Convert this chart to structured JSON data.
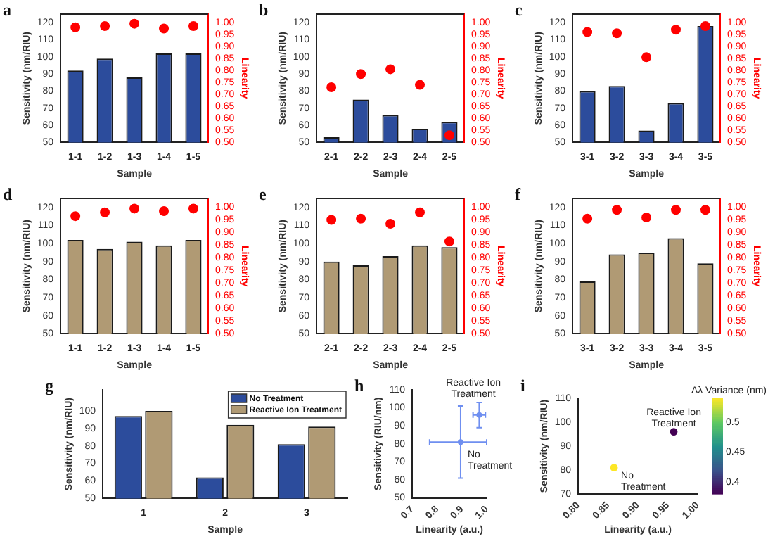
{
  "chart_data": [
    {
      "type": "bar",
      "title": "a",
      "xlabel": "Sample",
      "ylabel": "Sensitivity (nm/RIU)",
      "y2label": "Linearity",
      "categories": [
        "1-1",
        "1-2",
        "1-3",
        "1-4",
        "1-5"
      ],
      "series": [
        {
          "type": "bar",
          "color": "#2c4c9c",
          "values": [
            92,
            99,
            88,
            102,
            102
          ]
        },
        {
          "type": "scatter",
          "axis": "y2",
          "color": "#ff0000",
          "values": [
            0.98,
            0.985,
            0.995,
            0.975,
            0.985
          ]
        }
      ],
      "marker": "circle",
      "ylim": [
        50,
        125
      ],
      "yticks": [
        50,
        60,
        70,
        80,
        90,
        100,
        110,
        120
      ],
      "y2lim": [
        0.5,
        1.035
      ],
      "y2ticks": [
        {
          "value": 0.5,
          "label": "0.50"
        },
        {
          "value": 0.55,
          "label": "0.55"
        },
        {
          "value": 0.6,
          "label": "0.60"
        },
        {
          "value": 0.65,
          "label": "0.65"
        },
        {
          "value": 0.7,
          "label": "0.70"
        },
        {
          "value": 0.75,
          "label": "0.75"
        },
        {
          "value": 0.8,
          "label": "0.80"
        },
        {
          "value": 0.85,
          "label": "0.85"
        },
        {
          "value": 0.9,
          "label": "0.90"
        },
        {
          "value": 0.95,
          "label": "0.95"
        },
        {
          "value": 1,
          "label": "1.00"
        }
      ]
    },
    {
      "type": "bar",
      "title": "b",
      "xlabel": "Sample",
      "ylabel": "Sensitivity (nm/RIU)",
      "y2label": "Linearity",
      "categories": [
        "2-1",
        "2-2",
        "2-3",
        "2-4",
        "2-5"
      ],
      "series": [
        {
          "type": "bar",
          "color": "#2c4c9c",
          "values": [
            53,
            75,
            66,
            58,
            62
          ]
        },
        {
          "type": "scatter",
          "axis": "y2",
          "color": "#ff0000",
          "values": [
            0.73,
            0.785,
            0.805,
            0.74,
            0.53
          ]
        }
      ],
      "marker": "circle",
      "ylim": [
        50,
        125
      ],
      "yticks": [
        50,
        60,
        70,
        80,
        90,
        100,
        110,
        120
      ],
      "y2lim": [
        0.5,
        1.035
      ],
      "y2ticks": [
        {
          "value": 0.5,
          "label": "0.50"
        },
        {
          "value": 0.55,
          "label": "0.55"
        },
        {
          "value": 0.6,
          "label": "0.60"
        },
        {
          "value": 0.65,
          "label": "0.65"
        },
        {
          "value": 0.7,
          "label": "0.70"
        },
        {
          "value": 0.75,
          "label": "0.75"
        },
        {
          "value": 0.8,
          "label": "0.80"
        },
        {
          "value": 0.85,
          "label": "0.85"
        },
        {
          "value": 0.9,
          "label": "0.90"
        },
        {
          "value": 0.95,
          "label": "0.95"
        },
        {
          "value": 1,
          "label": "1.00"
        }
      ]
    },
    {
      "type": "bar",
      "title": "c",
      "xlabel": "Sample",
      "ylabel": "Sensitivity (nm/RIU)",
      "y2label": "Linearity",
      "categories": [
        "3-1",
        "3-2",
        "3-3",
        "3-4",
        "3-5"
      ],
      "series": [
        {
          "type": "bar",
          "color": "#2c4c9c",
          "values": [
            80,
            83,
            57,
            73,
            118
          ]
        },
        {
          "type": "scatter",
          "axis": "y2",
          "color": "#ff0000",
          "values": [
            0.96,
            0.955,
            0.855,
            0.97,
            0.985
          ]
        }
      ],
      "marker": "circle",
      "ylim": [
        50,
        125
      ],
      "yticks": [
        50,
        60,
        70,
        80,
        90,
        100,
        110,
        120
      ],
      "y2lim": [
        0.5,
        1.035
      ],
      "y2ticks": [
        {
          "value": 0.5,
          "label": "0.50"
        },
        {
          "value": 0.55,
          "label": "0.55"
        },
        {
          "value": 0.6,
          "label": "0.60"
        },
        {
          "value": 0.65,
          "label": "0.65"
        },
        {
          "value": 0.7,
          "label": "0.70"
        },
        {
          "value": 0.75,
          "label": "0.75"
        },
        {
          "value": 0.8,
          "label": "0.80"
        },
        {
          "value": 0.85,
          "label": "0.85"
        },
        {
          "value": 0.9,
          "label": "0.90"
        },
        {
          "value": 0.95,
          "label": "0.95"
        },
        {
          "value": 1,
          "label": "1.00"
        }
      ]
    },
    {
      "type": "bar",
      "title": "d",
      "xlabel": "Sample",
      "ylabel": "Sensitivity (nm/RIU)",
      "y2label": "Linearity",
      "categories": [
        "1-1",
        "1-2",
        "1-3",
        "1-4",
        "1-5"
      ],
      "series": [
        {
          "type": "bar",
          "color": "#b09a74",
          "values": [
            102,
            97,
            101,
            99,
            102
          ]
        },
        {
          "type": "scatter",
          "axis": "y2",
          "color": "#ff0000",
          "values": [
            0.965,
            0.98,
            0.995,
            0.985,
            0.995
          ]
        }
      ],
      "marker": "circle",
      "ylim": [
        50,
        125
      ],
      "yticks": [
        50,
        60,
        70,
        80,
        90,
        100,
        110,
        120
      ],
      "y2lim": [
        0.5,
        1.035
      ],
      "y2ticks": [
        {
          "value": 0.5,
          "label": "0.50"
        },
        {
          "value": 0.55,
          "label": "0.55"
        },
        {
          "value": 0.6,
          "label": "0.60"
        },
        {
          "value": 0.65,
          "label": "0.65"
        },
        {
          "value": 0.7,
          "label": "0.70"
        },
        {
          "value": 0.75,
          "label": "0.75"
        },
        {
          "value": 0.8,
          "label": "0.80"
        },
        {
          "value": 0.85,
          "label": "0.85"
        },
        {
          "value": 0.9,
          "label": "0.90"
        },
        {
          "value": 0.95,
          "label": "0.95"
        },
        {
          "value": 1,
          "label": "1.00"
        }
      ]
    },
    {
      "type": "bar",
      "title": "e",
      "xlabel": "Sample",
      "ylabel": "Sensitivity (nm/RIU)",
      "y2label": "Linearity",
      "categories": [
        "2-1",
        "2-2",
        "2-3",
        "2-4",
        "2-5"
      ],
      "series": [
        {
          "type": "bar",
          "color": "#b09a74",
          "values": [
            90,
            88,
            93,
            99,
            98
          ]
        },
        {
          "type": "scatter",
          "axis": "y2",
          "color": "#ff0000",
          "values": [
            0.95,
            0.955,
            0.935,
            0.98,
            0.865
          ]
        }
      ],
      "marker": "circle",
      "ylim": [
        50,
        125
      ],
      "yticks": [
        50,
        60,
        70,
        80,
        90,
        100,
        110,
        120
      ],
      "y2lim": [
        0.5,
        1.035
      ],
      "y2ticks": [
        {
          "value": 0.5,
          "label": "0.50"
        },
        {
          "value": 0.55,
          "label": "0.55"
        },
        {
          "value": 0.6,
          "label": "0.60"
        },
        {
          "value": 0.65,
          "label": "0.65"
        },
        {
          "value": 0.7,
          "label": "0.70"
        },
        {
          "value": 0.75,
          "label": "0.75"
        },
        {
          "value": 0.8,
          "label": "0.80"
        },
        {
          "value": 0.85,
          "label": "0.85"
        },
        {
          "value": 0.9,
          "label": "0.90"
        },
        {
          "value": 0.95,
          "label": "0.95"
        },
        {
          "value": 1,
          "label": "1.00"
        }
      ]
    },
    {
      "type": "bar",
      "title": "f",
      "xlabel": "Sample",
      "ylabel": "Sensitivity (nm/RIU)",
      "y2label": "Linearity",
      "categories": [
        "3-1",
        "3-2",
        "3-3",
        "3-4",
        "3-5"
      ],
      "series": [
        {
          "type": "bar",
          "color": "#b09a74",
          "values": [
            79,
            94,
            95,
            103,
            89
          ]
        },
        {
          "type": "scatter",
          "axis": "y2",
          "color": "#ff0000",
          "values": [
            0.955,
            0.99,
            0.96,
            0.99,
            0.99
          ]
        }
      ],
      "marker": "circle",
      "ylim": [
        50,
        125
      ],
      "yticks": [
        50,
        60,
        70,
        80,
        90,
        100,
        110,
        120
      ],
      "y2lim": [
        0.5,
        1.035
      ],
      "y2ticks": [
        {
          "value": 0.5,
          "label": "0.50"
        },
        {
          "value": 0.55,
          "label": "0.55"
        },
        {
          "value": 0.6,
          "label": "0.60"
        },
        {
          "value": 0.65,
          "label": "0.65"
        },
        {
          "value": 0.7,
          "label": "0.70"
        },
        {
          "value": 0.75,
          "label": "0.75"
        },
        {
          "value": 0.8,
          "label": "0.80"
        },
        {
          "value": 0.85,
          "label": "0.85"
        },
        {
          "value": 0.9,
          "label": "0.90"
        },
        {
          "value": 0.95,
          "label": "0.95"
        },
        {
          "value": 1,
          "label": "1.00"
        }
      ]
    },
    {
      "type": "bar",
      "title": "g",
      "xlabel": "Sample",
      "ylabel": "Sensitivity (nm/RIU)",
      "categories": [
        "1",
        "2",
        "3"
      ],
      "series": [
        {
          "name": "No Treatment",
          "color": "#2c4c9c",
          "values": [
            97,
            62,
            81
          ]
        },
        {
          "name": "Reactive Ion Treatment",
          "color": "#b09a74",
          "values": [
            100,
            92,
            91
          ]
        }
      ],
      "legend": "top right",
      "ylim": [
        50,
        112
      ],
      "yticks": [
        50,
        60,
        70,
        80,
        90,
        100
      ]
    },
    {
      "type": "scatter",
      "title": "h",
      "xlabel": "Linearity (a.u.)",
      "ylabel": "Sensitivity (RIU/nm)",
      "x": [
        0.895,
        0.97
      ],
      "values": [
        81,
        96
      ],
      "errors": [
        20,
        7
      ],
      "xerrors": [
        [
          0.77,
          1.0
        ],
        0.025
      ],
      "color": "#6f8ff0",
      "marker": "circle",
      "xlim": [
        0.7,
        1.0
      ],
      "xticks": [
        0.7,
        0.8,
        0.9,
        {
          "value": 1,
          "label": "1.0"
        }
      ],
      "ylim": [
        50,
        110
      ],
      "yticks": [
        50,
        60,
        70,
        80,
        90,
        100,
        110
      ],
      "annotations": [
        {
          "text": "Reactive Ion Treatment",
          "x": 0.97,
          "y": 96
        },
        {
          "text": "No Treatment",
          "x": 0.895,
          "y": 81
        }
      ]
    },
    {
      "type": "scatter",
      "title": "i",
      "xlabel": "Linearity (a.u.)",
      "ylabel": "Sensitivity (nm/RIU)",
      "clabel": "Δλ Variance (nm)",
      "x": [
        0.86,
        0.96
      ],
      "values": [
        81,
        96
      ],
      "cvalues": [
        0.54,
        0.38
      ],
      "clim": [
        0.38,
        0.54
      ],
      "cticks": [
        0.4,
        0.45,
        0.5
      ],
      "marker": "circle",
      "xlim": [
        0.8,
        1.0
      ],
      "xticks": [
        {
          "value": 0.8,
          "label": "0.80"
        },
        0.85,
        {
          "value": 0.9,
          "label": "0.90"
        },
        0.95,
        {
          "value": 1,
          "label": "1.00"
        }
      ],
      "ylim": [
        70,
        110
      ],
      "yticks": [
        70,
        80,
        90,
        100,
        110
      ],
      "annotations": [
        {
          "text": "No Treatment",
          "x": 0.86,
          "y": 81
        },
        {
          "text": "Reactive Ion Treatment",
          "x": 0.96,
          "y": 96
        }
      ]
    }
  ]
}
